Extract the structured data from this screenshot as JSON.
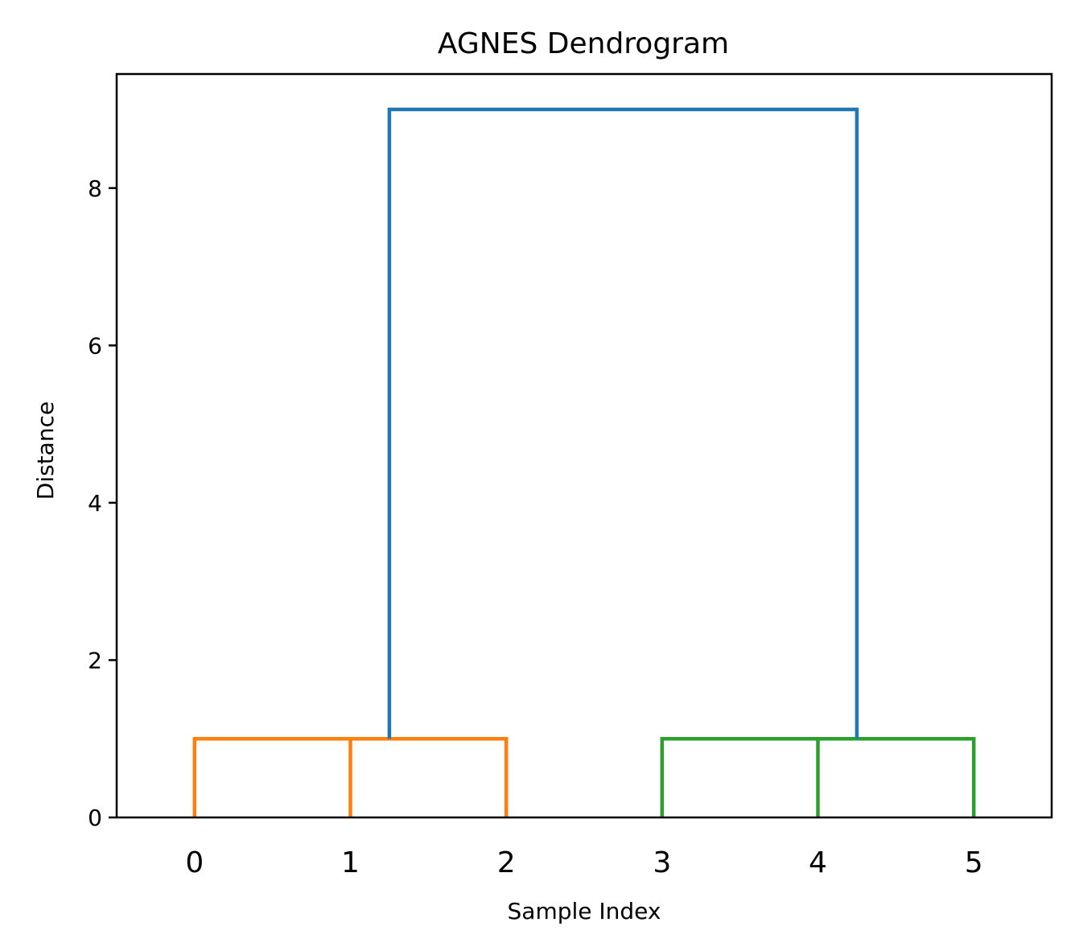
{
  "chart_data": {
    "type": "dendrogram",
    "title": "AGNES Dendrogram",
    "xlabel": "Sample Index",
    "ylabel": "Distance",
    "ylim": [
      0,
      9.45
    ],
    "yticks": [
      0,
      2,
      4,
      6,
      8
    ],
    "leaves": [
      "0",
      "1",
      "2",
      "3",
      "4",
      "5"
    ],
    "links": [
      {
        "x": [
          0,
          0,
          1,
          1
        ],
        "y": [
          0,
          1,
          1,
          0
        ],
        "color": "#ff7f0e"
      },
      {
        "x": [
          0.5,
          0.5,
          2,
          2
        ],
        "y": [
          1,
          1,
          1,
          0
        ],
        "color": "#ff7f0e"
      },
      {
        "x": [
          3,
          3,
          4,
          4
        ],
        "y": [
          0,
          1,
          1,
          0
        ],
        "color": "#2ca02c"
      },
      {
        "x": [
          3.5,
          3.5,
          5,
          5
        ],
        "y": [
          1,
          1,
          1,
          0
        ],
        "color": "#2ca02c"
      },
      {
        "x": [
          1.25,
          1.25,
          4.25,
          4.25
        ],
        "y": [
          1,
          9,
          9,
          1
        ],
        "color": "#1f77b4"
      }
    ],
    "grid": false
  }
}
